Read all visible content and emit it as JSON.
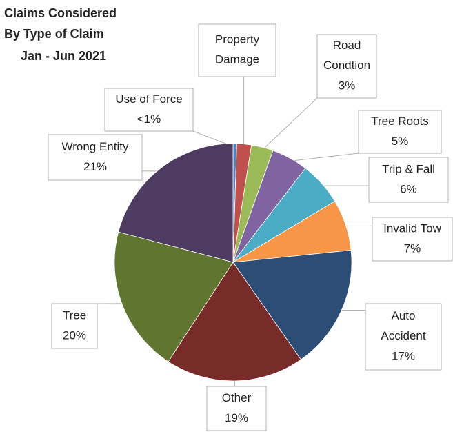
{
  "chart_data": {
    "type": "pie",
    "title": [
      "Claims Considered",
      "By Type of Claim"
    ],
    "subtitle": "Jan - Jun 2021",
    "categories": [
      "Use of Force",
      "Property Damage",
      "Road Condtion",
      "Tree Roots",
      "Trip & Fall",
      "Invalid Tow",
      "Auto Accident",
      "Other",
      "Tree",
      "Wrong Entity"
    ],
    "values": [
      0.5,
      2,
      3,
      5,
      6,
      7,
      17,
      19,
      20,
      21
    ],
    "value_labels": [
      "<1%",
      null,
      "3%",
      "5%",
      "6%",
      "7%",
      "17%",
      "19%",
      "20%",
      "21%"
    ],
    "colors": [
      "#4f81bd",
      "#c0504d",
      "#9bbb59",
      "#8064a2",
      "#4bacc6",
      "#f79646",
      "#2c4d75",
      "#772c2a",
      "#5f7530",
      "#4d3b62"
    ]
  }
}
